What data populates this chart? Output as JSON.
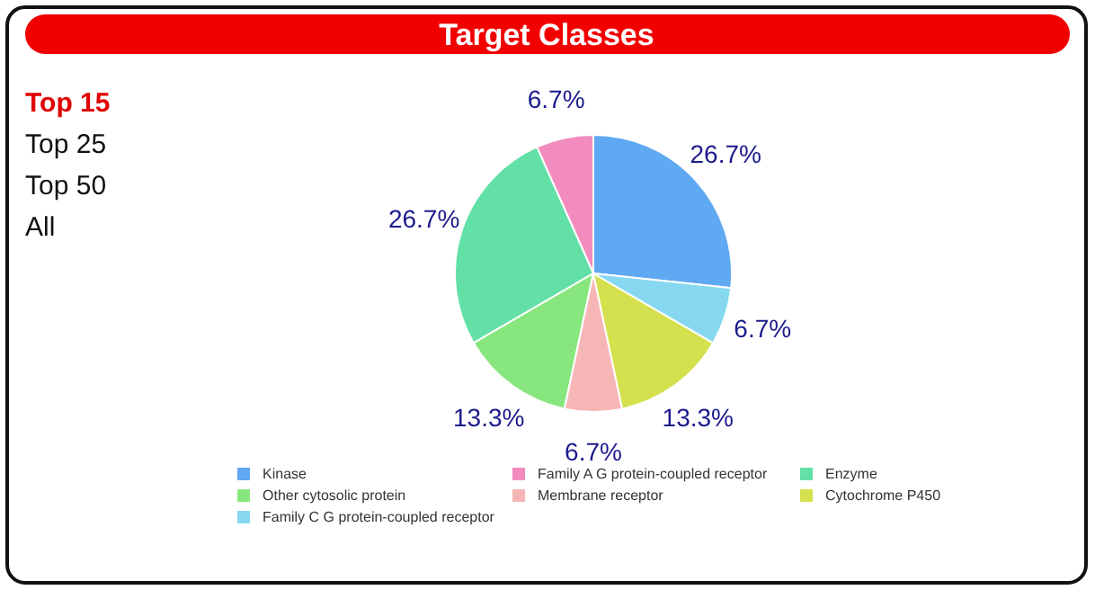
{
  "chart_data": {
    "type": "pie",
    "title": "Target Classes",
    "categories": [
      "Kinase",
      "Family A G protein-coupled receptor",
      "Enzyme",
      "Other cytosolic protein",
      "Membrane receptor",
      "Cytochrome P450",
      "Family C G protein-coupled receptor"
    ],
    "values": [
      26.7,
      6.7,
      26.7,
      13.3,
      6.7,
      13.3,
      6.7
    ],
    "colors": [
      "#5fa8f2",
      "#f28cbf",
      "#62e0a6",
      "#88e67e",
      "#f7b6b6",
      "#d5e04e",
      "#86d8f0"
    ],
    "value_labels": [
      "26.7%",
      "6.7%",
      "26.7%",
      "13.3%",
      "6.7%",
      "13.3%",
      "6.7%"
    ],
    "annotations": [
      "Top 15",
      "Top 25",
      "Top 50",
      "All"
    ],
    "legend": "bottom"
  }
}
